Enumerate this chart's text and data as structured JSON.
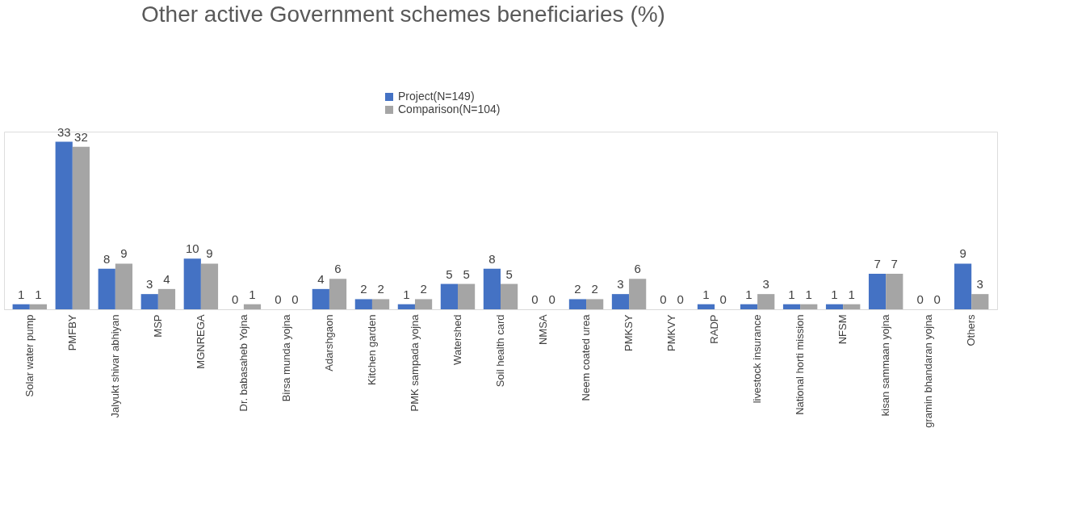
{
  "chart_data": {
    "type": "bar",
    "title": "Other active Government schemes beneficiaries (%)",
    "categories": [
      "Solar water pump",
      "PMFBY",
      "Jalyukt shivar abhiyan",
      "MSP",
      "MGNREGA",
      "Dr. babasaheb Yojna",
      "Birsa munda yojna",
      "Adarshgaon",
      "Kitchen garden",
      "PMK sampada yojna",
      "Watershed",
      "Soil health card",
      "NMSA",
      "Neem coated urea",
      "PMKSY",
      "PMKVY",
      "RADP",
      "livestock insurance",
      "National horti mission",
      "NFSM",
      "kisan sammaan yojna",
      "gramin bhandaran yojna",
      "Others"
    ],
    "series": [
      {
        "name": "Project(N=149)",
        "color": "#4472c4",
        "values": [
          1,
          33,
          8,
          3,
          10,
          0,
          0,
          4,
          2,
          1,
          5,
          8,
          0,
          2,
          3,
          0,
          1,
          1,
          1,
          1,
          7,
          0,
          9
        ]
      },
      {
        "name": "Comparison(N=104)",
        "color": "#a5a5a5",
        "values": [
          1,
          32,
          9,
          4,
          9,
          1,
          0,
          6,
          2,
          2,
          5,
          5,
          0,
          2,
          6,
          0,
          0,
          3,
          1,
          1,
          7,
          0,
          3
        ]
      }
    ],
    "data_labels": true,
    "legend": "top",
    "grid": false
  }
}
